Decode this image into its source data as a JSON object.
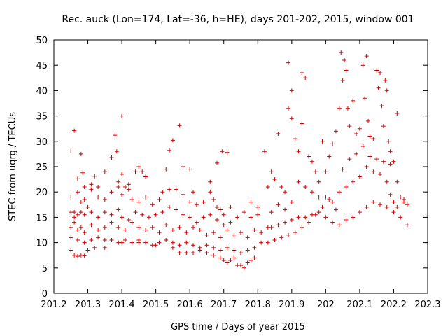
{
  "chart_data": {
    "type": "scatter",
    "title": "Rec. auck (Lon=174, Lat=-36, h=HE), days 201-202, 2015, window 001",
    "xlabel": "GPS time / Days of year 2015",
    "ylabel": "STEC from uqrg / TECUs",
    "xlim": [
      201.2,
      202.3
    ],
    "ylim": [
      0,
      50
    ],
    "xticks": [
      "201.2",
      "201.3",
      "201.4",
      "201.5",
      "201.6",
      "201.7",
      "201.8",
      "201.9",
      "202",
      "202.1",
      "202.2",
      "202.3"
    ],
    "yticks": [
      "0",
      "5",
      "10",
      "15",
      "20",
      "25",
      "30",
      "35",
      "40",
      "45",
      "50"
    ],
    "grid": false,
    "legend": "none",
    "marker": "plus",
    "color": "#cc0000",
    "series": [
      {
        "points": [
          [
            201.25,
            28.1
          ],
          [
            201.26,
            32.1
          ],
          [
            201.27,
            22.6
          ],
          [
            201.28,
            27.5
          ],
          [
            201.285,
            23.8
          ],
          [
            201.29,
            18.5
          ],
          [
            201.31,
            21.5
          ],
          [
            201.32,
            23.1
          ],
          [
            201.33,
            21.0
          ],
          [
            201.35,
            24.0
          ],
          [
            201.37,
            26.8
          ],
          [
            201.38,
            31.2
          ],
          [
            201.385,
            28.0
          ],
          [
            201.39,
            22.0
          ],
          [
            201.4,
            35.0
          ],
          [
            201.4,
            23.5
          ],
          [
            201.42,
            21.5
          ],
          [
            201.44,
            24.0
          ],
          [
            201.45,
            25.0
          ],
          [
            201.46,
            24.0
          ],
          [
            201.47,
            23.0
          ],
          [
            201.53,
            24.5
          ],
          [
            201.54,
            28.2
          ],
          [
            201.55,
            30.2
          ],
          [
            201.57,
            33.1
          ],
          [
            201.58,
            25.0
          ],
          [
            201.6,
            24.5
          ],
          [
            201.61,
            20.0
          ],
          [
            201.66,
            22.0
          ],
          [
            201.68,
            25.7
          ],
          [
            201.695,
            28.0
          ],
          [
            201.71,
            27.8
          ],
          [
            201.25,
            19.0
          ],
          [
            201.26,
            16.0
          ],
          [
            201.27,
            20.0
          ],
          [
            201.28,
            18.0
          ],
          [
            201.29,
            21.0
          ],
          [
            201.3,
            17.0
          ],
          [
            201.31,
            20.5
          ],
          [
            201.33,
            19.0
          ],
          [
            201.35,
            18.5
          ],
          [
            201.37,
            20.0
          ],
          [
            201.39,
            21.0
          ],
          [
            201.4,
            19.5
          ],
          [
            201.41,
            21.0
          ],
          [
            201.42,
            20.5
          ],
          [
            201.43,
            18.5
          ],
          [
            201.45,
            18.0
          ],
          [
            201.47,
            19.0
          ],
          [
            201.49,
            17.5
          ],
          [
            201.51,
            18.5
          ],
          [
            201.52,
            20.0
          ],
          [
            201.54,
            20.5
          ],
          [
            201.56,
            20.5
          ],
          [
            201.58,
            19.5
          ],
          [
            201.6,
            18.0
          ],
          [
            201.62,
            17.5
          ],
          [
            201.64,
            18.0
          ],
          [
            201.66,
            20.0
          ],
          [
            201.67,
            18.5
          ],
          [
            201.68,
            17.0
          ],
          [
            201.69,
            16.5
          ],
          [
            201.7,
            15.5
          ],
          [
            201.72,
            17.0
          ],
          [
            201.25,
            16.0
          ],
          [
            201.26,
            15.0
          ],
          [
            201.27,
            15.5
          ],
          [
            201.28,
            16.0
          ],
          [
            201.29,
            15.5
          ],
          [
            201.31,
            16.0
          ],
          [
            201.33,
            15.0
          ],
          [
            201.35,
            16.0
          ],
          [
            201.37,
            15.5
          ],
          [
            201.39,
            16.5
          ],
          [
            201.4,
            15.0
          ],
          [
            201.42,
            14.5
          ],
          [
            201.44,
            16.0
          ],
          [
            201.46,
            15.5
          ],
          [
            201.48,
            15.0
          ],
          [
            201.5,
            15.5
          ],
          [
            201.52,
            16.0
          ],
          [
            201.54,
            17.0
          ],
          [
            201.56,
            16.5
          ],
          [
            201.58,
            15.5
          ],
          [
            201.6,
            15.0
          ],
          [
            201.62,
            14.0
          ],
          [
            201.64,
            15.0
          ],
          [
            201.66,
            15.5
          ],
          [
            201.68,
            14.5
          ],
          [
            201.7,
            13.5
          ],
          [
            201.72,
            14.0
          ],
          [
            201.74,
            15.0
          ],
          [
            201.76,
            16.0
          ],
          [
            201.78,
            15.0
          ],
          [
            201.8,
            15.5
          ],
          [
            201.25,
            13.0
          ],
          [
            201.26,
            14.0
          ],
          [
            201.27,
            12.5
          ],
          [
            201.28,
            13.0
          ],
          [
            201.29,
            12.0
          ],
          [
            201.31,
            13.5
          ],
          [
            201.33,
            12.5
          ],
          [
            201.35,
            13.0
          ],
          [
            201.37,
            14.0
          ],
          [
            201.39,
            13.0
          ],
          [
            201.41,
            12.5
          ],
          [
            201.43,
            14.0
          ],
          [
            201.45,
            13.0
          ],
          [
            201.47,
            12.5
          ],
          [
            201.49,
            13.0
          ],
          [
            201.51,
            12.0
          ],
          [
            201.53,
            13.5
          ],
          [
            201.55,
            12.5
          ],
          [
            201.57,
            13.0
          ],
          [
            201.59,
            12.0
          ],
          [
            201.61,
            13.0
          ],
          [
            201.63,
            12.5
          ],
          [
            201.65,
            11.5
          ],
          [
            201.67,
            12.0
          ],
          [
            201.69,
            11.0
          ],
          [
            201.71,
            12.5
          ],
          [
            201.73,
            11.5
          ],
          [
            201.75,
            12.0
          ],
          [
            201.77,
            11.0
          ],
          [
            201.79,
            12.5
          ],
          [
            201.81,
            12.0
          ],
          [
            201.83,
            13.0
          ],
          [
            201.25,
            11.0
          ],
          [
            201.27,
            10.5
          ],
          [
            201.29,
            10.0
          ],
          [
            201.31,
            10.5
          ],
          [
            201.33,
            11.0
          ],
          [
            201.35,
            10.5
          ],
          [
            201.37,
            10.5
          ],
          [
            201.39,
            10.0
          ],
          [
            201.41,
            10.5
          ],
          [
            201.43,
            10.0
          ],
          [
            201.45,
            10.5
          ],
          [
            201.47,
            10.0
          ],
          [
            201.49,
            9.5
          ],
          [
            201.51,
            10.0
          ],
          [
            201.53,
            10.5
          ],
          [
            201.55,
            10.0
          ],
          [
            201.57,
            9.5
          ],
          [
            201.59,
            10.0
          ],
          [
            201.61,
            9.5
          ],
          [
            201.63,
            9.0
          ],
          [
            201.65,
            9.5
          ],
          [
            201.67,
            9.0
          ],
          [
            201.69,
            8.5
          ],
          [
            201.71,
            9.0
          ],
          [
            201.73,
            8.5
          ],
          [
            201.75,
            8.0
          ],
          [
            201.77,
            8.5
          ],
          [
            201.79,
            9.0
          ],
          [
            201.81,
            10.0
          ],
          [
            201.25,
            8.5
          ],
          [
            201.26,
            7.5
          ],
          [
            201.27,
            7.3
          ],
          [
            201.28,
            7.5
          ],
          [
            201.29,
            7.4
          ],
          [
            201.3,
            8.5
          ],
          [
            201.32,
            9.0
          ],
          [
            201.35,
            9.0
          ],
          [
            201.4,
            10.0
          ],
          [
            201.45,
            10.0
          ],
          [
            201.5,
            9.5
          ],
          [
            201.55,
            9.0
          ],
          [
            201.57,
            8.0
          ],
          [
            201.59,
            8.0
          ],
          [
            201.61,
            8.0
          ],
          [
            201.63,
            8.5
          ],
          [
            201.65,
            8.0
          ],
          [
            201.67,
            7.5
          ],
          [
            201.69,
            7.0
          ],
          [
            201.7,
            6.5
          ],
          [
            201.71,
            6.0
          ],
          [
            201.72,
            6.5
          ],
          [
            201.73,
            7.0
          ],
          [
            201.74,
            5.5
          ],
          [
            201.75,
            5.5
          ],
          [
            201.76,
            5.0
          ],
          [
            201.77,
            6.0
          ],
          [
            201.78,
            6.5
          ],
          [
            201.79,
            7.0
          ],
          [
            201.78,
            18.0
          ],
          [
            201.8,
            17.0
          ],
          [
            201.82,
            28.0
          ],
          [
            201.83,
            21.0
          ],
          [
            201.84,
            24.0
          ],
          [
            201.85,
            22.5
          ],
          [
            201.86,
            31.5
          ],
          [
            201.87,
            21.0
          ],
          [
            201.88,
            20.0
          ],
          [
            201.89,
            45.5
          ],
          [
            201.89,
            36.5
          ],
          [
            201.9,
            40.0
          ],
          [
            201.9,
            34.5
          ],
          [
            201.91,
            30.5
          ],
          [
            201.92,
            28.0
          ],
          [
            201.93,
            33.5
          ],
          [
            201.93,
            43.5
          ],
          [
            201.94,
            42.5
          ],
          [
            201.95,
            27.0
          ],
          [
            201.96,
            26.0
          ],
          [
            201.97,
            24.0
          ],
          [
            201.98,
            22.0
          ],
          [
            201.99,
            30.0
          ],
          [
            202.0,
            24.0
          ],
          [
            202.01,
            27.0
          ],
          [
            202.02,
            29.5
          ],
          [
            202.03,
            32.0
          ],
          [
            202.04,
            36.5
          ],
          [
            202.045,
            47.5
          ],
          [
            202.05,
            42.0
          ],
          [
            202.055,
            46.0
          ],
          [
            202.06,
            44.0
          ],
          [
            202.065,
            36.5
          ],
          [
            202.07,
            33.0
          ],
          [
            202.08,
            38.0
          ],
          [
            202.09,
            31.5
          ],
          [
            202.1,
            32.5
          ],
          [
            202.11,
            45.0
          ],
          [
            202.115,
            38.5
          ],
          [
            202.12,
            46.8
          ],
          [
            202.125,
            34.0
          ],
          [
            202.13,
            31.0
          ],
          [
            202.14,
            30.5
          ],
          [
            202.15,
            44.0
          ],
          [
            202.155,
            40.5
          ],
          [
            202.16,
            43.5
          ],
          [
            202.165,
            37.0
          ],
          [
            202.17,
            33.0
          ],
          [
            202.175,
            42.0
          ],
          [
            202.18,
            40.0
          ],
          [
            202.185,
            30.0
          ],
          [
            202.19,
            28.0
          ],
          [
            202.2,
            26.0
          ],
          [
            202.21,
            35.5
          ],
          [
            201.84,
            16.0
          ],
          [
            201.86,
            17.5
          ],
          [
            201.88,
            16.5
          ],
          [
            201.9,
            18.0
          ],
          [
            201.92,
            22.0
          ],
          [
            201.94,
            21.0
          ],
          [
            201.96,
            20.0
          ],
          [
            201.98,
            19.0
          ],
          [
            202.0,
            19.0
          ],
          [
            202.02,
            18.0
          ],
          [
            202.04,
            20.0
          ],
          [
            202.06,
            21.0
          ],
          [
            202.08,
            22.0
          ],
          [
            202.1,
            23.0
          ],
          [
            202.12,
            25.0
          ],
          [
            202.14,
            24.0
          ],
          [
            202.16,
            23.5
          ],
          [
            202.18,
            22.0
          ],
          [
            202.19,
            19.5
          ],
          [
            202.2,
            18.0
          ],
          [
            202.21,
            17.0
          ],
          [
            202.22,
            19.0
          ],
          [
            202.23,
            18.0
          ],
          [
            202.24,
            17.5
          ],
          [
            201.84,
            13.0
          ],
          [
            201.86,
            13.5
          ],
          [
            201.88,
            14.0
          ],
          [
            201.9,
            14.5
          ],
          [
            201.92,
            15.0
          ],
          [
            201.94,
            15.0
          ],
          [
            201.96,
            15.5
          ],
          [
            201.98,
            16.0
          ],
          [
            202.0,
            15.0
          ],
          [
            202.02,
            14.0
          ],
          [
            202.04,
            13.5
          ],
          [
            202.06,
            14.5
          ],
          [
            202.08,
            15.0
          ],
          [
            202.1,
            16.0
          ],
          [
            202.12,
            17.0
          ],
          [
            202.14,
            18.0
          ],
          [
            202.16,
            17.5
          ],
          [
            202.18,
            17.0
          ],
          [
            202.2,
            16.0
          ],
          [
            202.22,
            15.0
          ],
          [
            202.24,
            13.5
          ],
          [
            201.83,
            10.0
          ],
          [
            201.85,
            10.5
          ],
          [
            201.87,
            11.0
          ],
          [
            201.89,
            11.5
          ],
          [
            201.91,
            12.0
          ],
          [
            201.93,
            13.0
          ],
          [
            201.95,
            14.0
          ],
          [
            201.97,
            15.5
          ],
          [
            201.99,
            17.0
          ],
          [
            202.01,
            18.5
          ],
          [
            202.03,
            16.5
          ],
          [
            202.05,
            24.5
          ],
          [
            202.07,
            26.5
          ],
          [
            202.09,
            27.5
          ],
          [
            202.11,
            29.0
          ],
          [
            202.13,
            27.0
          ],
          [
            202.15,
            26.5
          ],
          [
            202.17,
            26.0
          ],
          [
            202.19,
            25.5
          ],
          [
            202.21,
            22.0
          ],
          [
            202.23,
            18.5
          ]
        ]
      }
    ]
  }
}
